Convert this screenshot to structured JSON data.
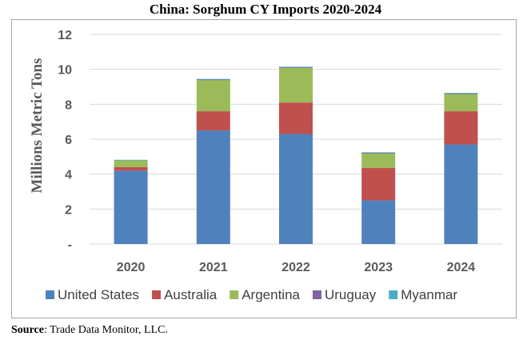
{
  "chart_data": {
    "type": "bar",
    "stacked": true,
    "title": "China: Sorghum CY Imports 2020-2024",
    "ylabel": "Millions Metric Tons",
    "xlabel": "",
    "ylim": [
      0,
      12
    ],
    "yticks": [
      0,
      2,
      4,
      6,
      8,
      10,
      12
    ],
    "ytick_labels": [
      "-",
      "2",
      "4",
      "6",
      "8",
      "10",
      "12"
    ],
    "categories": [
      "2020",
      "2021",
      "2022",
      "2023",
      "2024"
    ],
    "grid": true,
    "legend_position": "bottom",
    "series": [
      {
        "name": "United States",
        "color": "#4f81bd",
        "values": [
          4.2,
          6.5,
          6.3,
          2.5,
          5.7
        ]
      },
      {
        "name": "Australia",
        "color": "#c0504d",
        "values": [
          0.2,
          1.1,
          1.8,
          1.85,
          1.9
        ]
      },
      {
        "name": "Argentina",
        "color": "#9bbb59",
        "values": [
          0.4,
          1.8,
          2.0,
          0.85,
          1.0
        ]
      },
      {
        "name": "Uruguay",
        "color": "#8064a2",
        "values": [
          0.0,
          0.02,
          0.02,
          0.02,
          0.02
        ]
      },
      {
        "name": "Myanmar",
        "color": "#4bacc6",
        "values": [
          0.02,
          0.03,
          0.03,
          0.03,
          0.03
        ]
      }
    ]
  },
  "source": {
    "label": "Source",
    "text": ": Trade Data Monitor, LLC."
  }
}
